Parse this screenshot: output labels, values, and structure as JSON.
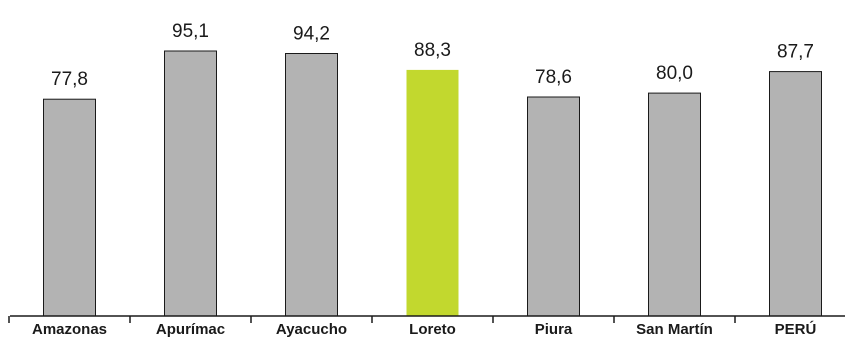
{
  "chart_data": {
    "type": "bar",
    "categories": [
      "Amazonas",
      "Apurímac",
      "Ayacucho",
      "Loreto",
      "Piura",
      "San Martín",
      "PERÚ"
    ],
    "values": [
      77.8,
      95.1,
      94.2,
      88.3,
      78.6,
      80.0,
      87.7
    ],
    "value_labels": [
      "77,8",
      "95,1",
      "94,2",
      "88,3",
      "78,6",
      "80,0",
      "87,7"
    ],
    "highlight_category": "Loreto",
    "colors": {
      "bar": "#b3b3b3",
      "highlight": "#c2d82e",
      "outline": "#1a1a1a"
    },
    "ylim": [
      0,
      100
    ],
    "grid": false,
    "legend": "none"
  }
}
